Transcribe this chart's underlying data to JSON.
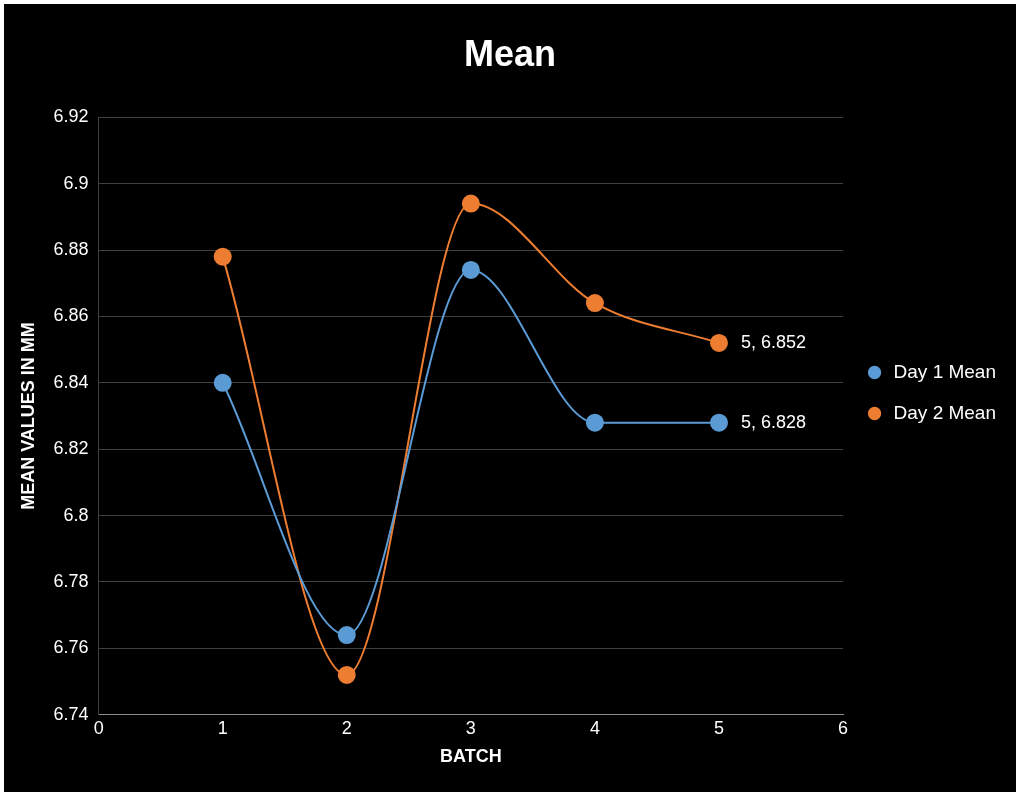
{
  "chart_data": {
    "type": "line",
    "title": "Mean",
    "xlabel": "BATCH",
    "ylabel": "MEAN VALUES IN MM",
    "x": [
      1,
      2,
      3,
      4,
      5
    ],
    "series": [
      {
        "name": "Day 1 Mean",
        "color": "#5b9bd5",
        "values": [
          6.84,
          6.764,
          6.874,
          6.828,
          6.828
        ],
        "value_labels": [
          null,
          null,
          null,
          null,
          "5, 6.828"
        ]
      },
      {
        "name": "Day 2 Mean",
        "color": "#ed7d31",
        "values": [
          6.878,
          6.752,
          6.894,
          6.864,
          6.852
        ],
        "value_labels": [
          null,
          null,
          null,
          null,
          "5, 6.852"
        ]
      }
    ],
    "xlim": [
      0,
      6
    ],
    "xticks": [
      0,
      1,
      2,
      3,
      4,
      5,
      6
    ],
    "ylim": [
      6.74,
      6.92
    ],
    "yticks": [
      6.74,
      6.76,
      6.78,
      6.8,
      6.82,
      6.84,
      6.86,
      6.88,
      6.9,
      6.92
    ],
    "grid": "y",
    "legend": "right",
    "marker": "circle",
    "line_style": "solid"
  }
}
